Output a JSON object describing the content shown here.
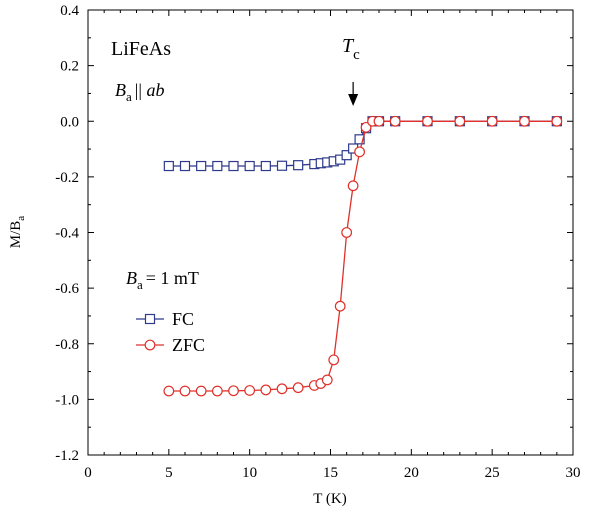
{
  "chart_data": {
    "type": "scatter",
    "xlabel": "T (K)",
    "ylabel": "M/B",
    "ylabel_sub": "a",
    "xlim": [
      0,
      30
    ],
    "ylim": [
      -1.2,
      0.4
    ],
    "xticks": [
      "0",
      "5",
      "10",
      "15",
      "20",
      "25",
      "30"
    ],
    "yticks": [
      "0.4",
      "0.2",
      "0.0",
      "-0.2",
      "-0.4",
      "-0.6",
      "-0.8",
      "-1.0",
      "-1.2"
    ],
    "grid": false,
    "legend_position": "left",
    "annotations": {
      "material": "LiFeAs",
      "field_dir_main": "B",
      "field_dir_sub": "a",
      "field_dir_rest": "|| ab",
      "field_main": "B",
      "field_sub": "a",
      "field_rest": "= 1 mT",
      "tc_main": "T",
      "tc_sub": "c",
      "tc_value": 16.4
    },
    "series": [
      {
        "name": "FC",
        "marker": "square",
        "color": "#2e3a8c",
        "points": [
          [
            5.0,
            -0.161
          ],
          [
            6.0,
            -0.161
          ],
          [
            7.0,
            -0.161
          ],
          [
            8.0,
            -0.161
          ],
          [
            9.0,
            -0.161
          ],
          [
            10.0,
            -0.161
          ],
          [
            11.0,
            -0.161
          ],
          [
            12.0,
            -0.16
          ],
          [
            13.0,
            -0.158
          ],
          [
            14.0,
            -0.154
          ],
          [
            14.4,
            -0.151
          ],
          [
            14.8,
            -0.148
          ],
          [
            15.2,
            -0.144
          ],
          [
            15.6,
            -0.138
          ],
          [
            16.0,
            -0.122
          ],
          [
            16.4,
            -0.098
          ],
          [
            16.8,
            -0.065
          ],
          [
            17.2,
            -0.025
          ],
          [
            17.6,
            0.0
          ],
          [
            18.0,
            0.0
          ],
          [
            19.0,
            0.0
          ],
          [
            21.0,
            0.0
          ],
          [
            23.0,
            0.0
          ],
          [
            25.0,
            0.0
          ],
          [
            27.0,
            0.0
          ],
          [
            29.0,
            0.0
          ]
        ]
      },
      {
        "name": "ZFC",
        "marker": "circle",
        "color": "#e0302a",
        "points": [
          [
            5.0,
            -0.97
          ],
          [
            6.0,
            -0.97
          ],
          [
            7.0,
            -0.97
          ],
          [
            8.0,
            -0.97
          ],
          [
            9.0,
            -0.969
          ],
          [
            10.0,
            -0.968
          ],
          [
            11.0,
            -0.966
          ],
          [
            12.0,
            -0.962
          ],
          [
            13.0,
            -0.958
          ],
          [
            14.0,
            -0.95
          ],
          [
            14.4,
            -0.943
          ],
          [
            14.8,
            -0.93
          ],
          [
            15.2,
            -0.858
          ],
          [
            15.6,
            -0.665
          ],
          [
            16.0,
            -0.4
          ],
          [
            16.4,
            -0.232
          ],
          [
            16.8,
            -0.11
          ],
          [
            17.2,
            -0.022
          ],
          [
            17.6,
            0.0
          ],
          [
            18.0,
            0.0
          ],
          [
            19.0,
            0.0
          ],
          [
            21.0,
            0.0
          ],
          [
            23.0,
            0.0
          ],
          [
            25.0,
            0.0
          ],
          [
            27.0,
            0.0
          ],
          [
            29.0,
            0.0
          ]
        ]
      }
    ]
  }
}
